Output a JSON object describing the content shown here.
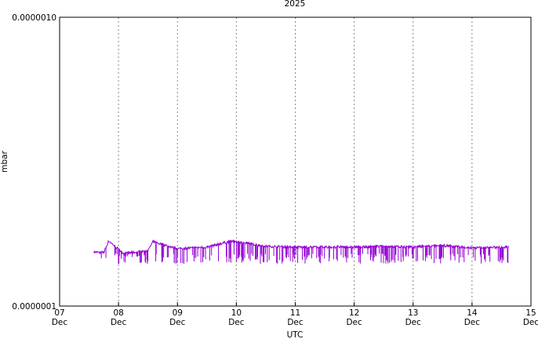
{
  "chart_data": {
    "type": "line",
    "title": "2025",
    "xlabel": "UTC",
    "ylabel": "mbar",
    "yscale": "log",
    "ylim": [
      1e-07,
      1e-06
    ],
    "y_ticks": [
      "0.0000010",
      "0.0000001"
    ],
    "x_ticks": [
      {
        "day": "07",
        "month": "Dec"
      },
      {
        "day": "08",
        "month": "Dec"
      },
      {
        "day": "09",
        "month": "Dec"
      },
      {
        "day": "10",
        "month": "Dec"
      },
      {
        "day": "11",
        "month": "Dec"
      },
      {
        "day": "12",
        "month": "Dec"
      },
      {
        "day": "13",
        "month": "Dec"
      },
      {
        "day": "14",
        "month": "Dec"
      },
      {
        "day": "15",
        "month": "Dec"
      }
    ],
    "xlim": [
      "2025-12-07",
      "2025-12-15"
    ],
    "grid": "vertical dotted",
    "legend": "none",
    "series": [
      {
        "color": "#9400d3",
        "x_range": [
          "2025-12-07T14:00",
          "2025-12-14T15:00"
        ],
        "baseline": 1.52e-07,
        "points": [
          [
            "2025-12-07T14:00",
            1.54e-07
          ],
          [
            "2025-12-07T18:00",
            1.53e-07
          ],
          [
            "2025-12-07T20:00",
            1.68e-07
          ],
          [
            "2025-12-08T02:00",
            1.52e-07
          ],
          [
            "2025-12-08T12:00",
            1.55e-07
          ],
          [
            "2025-12-08T14:00",
            1.67e-07
          ],
          [
            "2025-12-09T00:00",
            1.58e-07
          ],
          [
            "2025-12-09T12:00",
            1.6e-07
          ],
          [
            "2025-12-09T22:00",
            1.68e-07
          ],
          [
            "2025-12-10T12:00",
            1.61e-07
          ],
          [
            "2025-12-11T00:00",
            1.6e-07
          ],
          [
            "2025-12-11T12:00",
            1.6e-07
          ],
          [
            "2025-12-12T00:00",
            1.6e-07
          ],
          [
            "2025-12-12T12:00",
            1.61e-07
          ],
          [
            "2025-12-13T00:00",
            1.6e-07
          ],
          [
            "2025-12-13T12:00",
            1.62e-07
          ],
          [
            "2025-12-14T00:00",
            1.59e-07
          ],
          [
            "2025-12-14T15:00",
            1.6e-07
          ]
        ],
        "dips_min": 1.4e-07
      }
    ]
  }
}
